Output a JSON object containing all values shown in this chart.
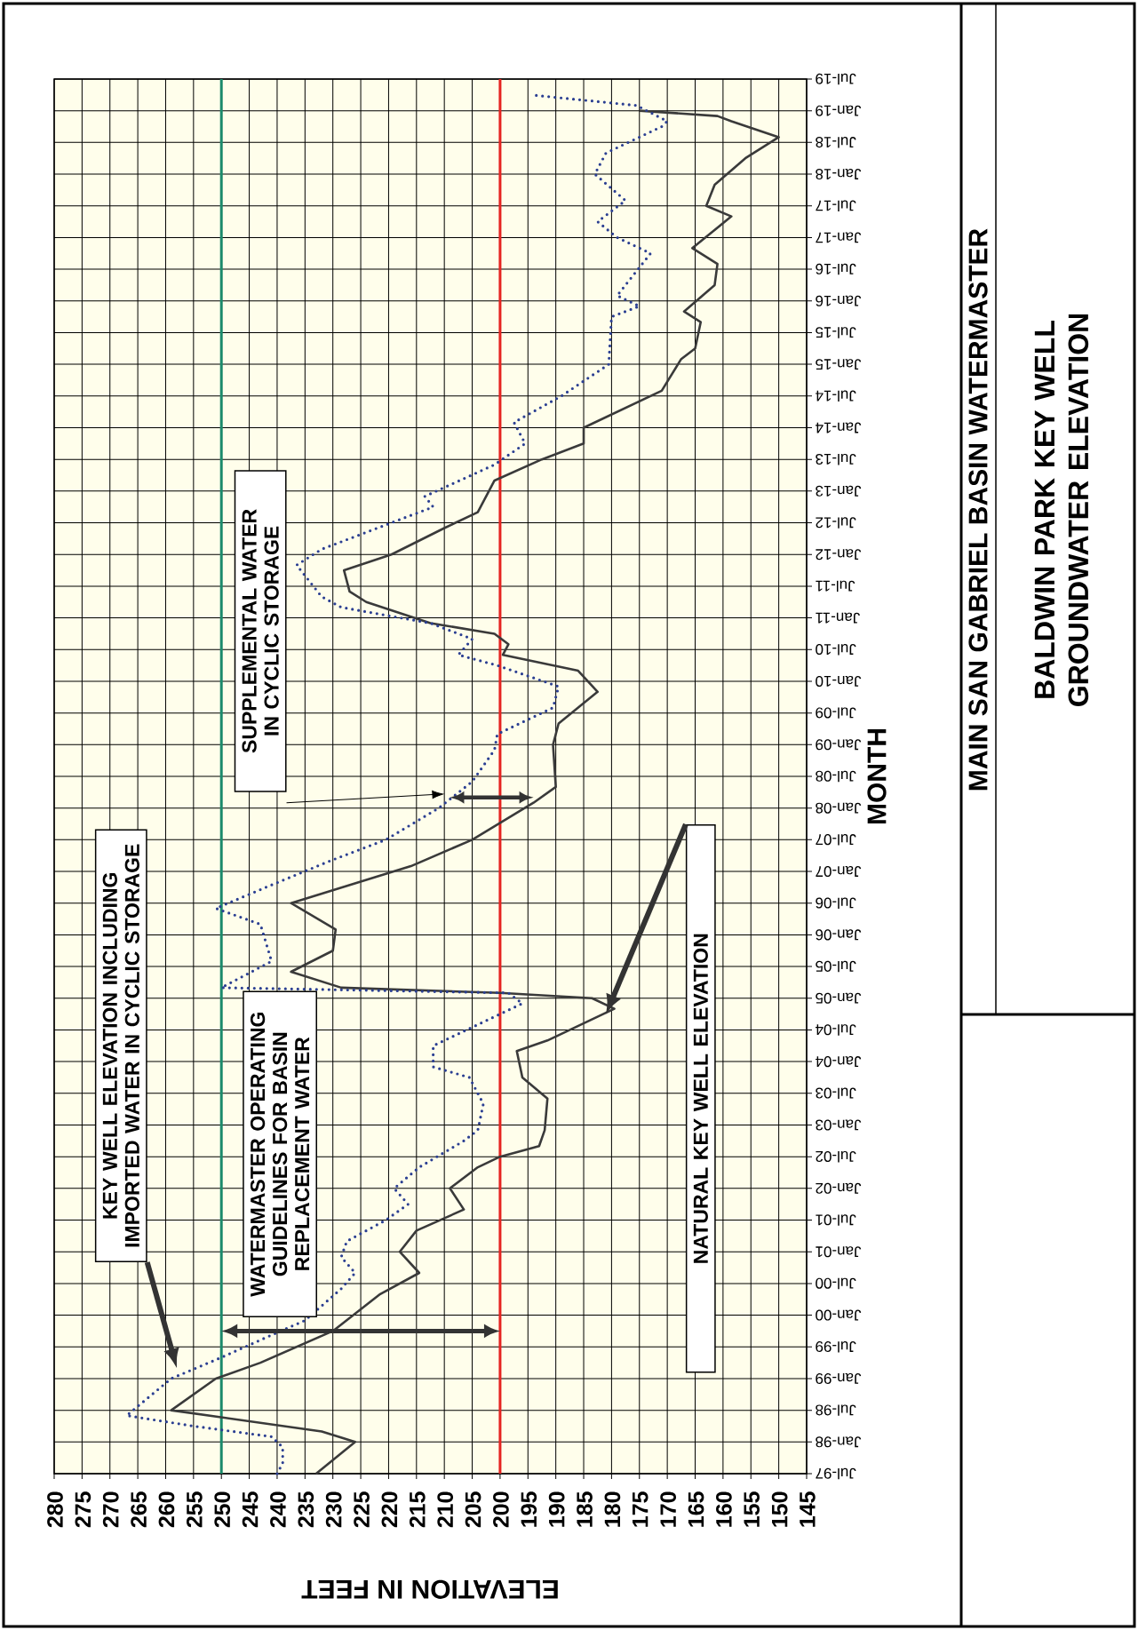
{
  "chart_data": {
    "type": "line",
    "title": "MAIN SAN GABRIEL BASIN WATERMASTER",
    "subtitle": "BALDWIN PARK KEY WELL GROUNDWATER ELEVATION",
    "xlabel": "ELEVATION IN FEET",
    "ylabel": "MONTH",
    "series": [
      {
        "color": "#3a3a3a",
        "line_style": "solid",
        "x": [
          "1997-07",
          "1998-01",
          "1998-03",
          "1998-07",
          "1999-01",
          "1999-04",
          "1999-10",
          "2000-05",
          "2000-09",
          "2001-01",
          "2001-05",
          "2001-09",
          "2002-01",
          "2002-05",
          "2002-07",
          "2002-09",
          "2002-12",
          "2003-06",
          "2003-10",
          "2004-03",
          "2004-05",
          "2004-11",
          "2005-01",
          "2005-02",
          "2005-03",
          "2005-06",
          "2005-10",
          "2006-02",
          "2006-07",
          "2007-02",
          "2007-07",
          "2008-02",
          "2008-05",
          "2009-01",
          "2009-05",
          "2009-11",
          "2010-03",
          "2010-06",
          "2010-08",
          "2010-10",
          "2010-12",
          "2011-04",
          "2011-06",
          "2011-10",
          "2012-01",
          "2012-06",
          "2012-09",
          "2013-03",
          "2013-07",
          "2013-10",
          "2014-01",
          "2014-08",
          "2015-02",
          "2015-04",
          "2015-09",
          "2015-11",
          "2016-04",
          "2016-08",
          "2016-11",
          "2017-05",
          "2017-07",
          "2017-11",
          "2018-04",
          "2018-08",
          "2018-11",
          "2018-12",
          "2019-01"
        ],
        "values": [
          233,
          226,
          232,
          259,
          251,
          243,
          230,
          221.5,
          214.5,
          218,
          215,
          206.5,
          209,
          204,
          200,
          193,
          192,
          191.5,
          196,
          197,
          191.5,
          179.5,
          183.5,
          200,
          228.5,
          237.5,
          230,
          229.5,
          237.5,
          216,
          205,
          194,
          190,
          190.5,
          189.5,
          182.5,
          186,
          199.5,
          198.5,
          201,
          212.5,
          224,
          227,
          228,
          219.5,
          210,
          204,
          201,
          192.5,
          185,
          185,
          171,
          167.5,
          165,
          164,
          167,
          161.5,
          161,
          165.5,
          158.5,
          163,
          161.5,
          156,
          150,
          158.5,
          161,
          175
        ]
      },
      {
        "color": "#2b3f92",
        "line_style": "dotted",
        "x": [
          "1997-07",
          "1997-09",
          "1997-12",
          "1998-02",
          "1998-04",
          "1998-06",
          "1999-01",
          "1999-05",
          "1999-09",
          "1999-12",
          "2000-06",
          "2000-09",
          "2000-12",
          "2001-03",
          "2001-07",
          "2001-10",
          "2002-01",
          "2002-05",
          "2002-10",
          "2002-12",
          "2003-05",
          "2003-10",
          "2003-12",
          "2004-04",
          "2004-08",
          "2004-12",
          "2005-02",
          "2005-03",
          "2005-08",
          "2006-03",
          "2006-06",
          "2006-10",
          "2007-03",
          "2007-07",
          "2008-01",
          "2008-06",
          "2008-12",
          "2009-03",
          "2009-08",
          "2009-12",
          "2010-04",
          "2010-06",
          "2010-09",
          "2010-12",
          "2011-03",
          "2011-05",
          "2011-11",
          "2012-02",
          "2012-07",
          "2012-10",
          "2012-12",
          "2013-06",
          "2013-10",
          "2014-02",
          "2014-07",
          "2015-01",
          "2015-10",
          "2015-12",
          "2016-02",
          "2016-10",
          "2017-01",
          "2017-04",
          "2017-08",
          "2018-01",
          "2018-05",
          "2018-10",
          "2018-11",
          "2019-02",
          "2019-04"
        ],
        "values": [
          240,
          239,
          239,
          241,
          255,
          267,
          259,
          250,
          241.5,
          235,
          228.5,
          226,
          228.5,
          227.5,
          220.5,
          216.5,
          219,
          214.5,
          206.5,
          204,
          203,
          205.5,
          212,
          212,
          204,
          196,
          198.5,
          250,
          241,
          243,
          251,
          242,
          230.5,
          220.5,
          211,
          205,
          201,
          200.5,
          190.5,
          189.5,
          200.5,
          207.5,
          205,
          212.5,
          228.5,
          232,
          236.5,
          232,
          219.5,
          212,
          213.5,
          201,
          195.5,
          197.5,
          189,
          180.5,
          180,
          175,
          179,
          173,
          179,
          182.5,
          177.5,
          183,
          181,
          171,
          170,
          175.5,
          194.5
        ]
      }
    ],
    "orientation": "horizontal",
    "ylim": [
      "1997-07",
      "2019-07"
    ],
    "yticks": [
      {
        "value": "1997-07",
        "label": "Jul-97"
      },
      {
        "value": "1998-01",
        "label": "Jan-98"
      },
      {
        "value": "1998-07",
        "label": "Jul-98"
      },
      {
        "value": "1999-01",
        "label": "Jan-99"
      },
      {
        "value": "1999-07",
        "label": "Jul-99"
      },
      {
        "value": "2000-01",
        "label": "Jan-00"
      },
      {
        "value": "2000-07",
        "label": "Jul-00"
      },
      {
        "value": "2001-01",
        "label": "Jan-01"
      },
      {
        "value": "2001-07",
        "label": "Jul-01"
      },
      {
        "value": "2002-01",
        "label": "Jan-02"
      },
      {
        "value": "2002-07",
        "label": "Jul-02"
      },
      {
        "value": "2003-01",
        "label": "Jan-03"
      },
      {
        "value": "2003-07",
        "label": "Jul-03"
      },
      {
        "value": "2004-01",
        "label": "Jan-04"
      },
      {
        "value": "2004-07",
        "label": "Jul-04"
      },
      {
        "value": "2005-01",
        "label": "Jan-05"
      },
      {
        "value": "2005-07",
        "label": "Jul-05"
      },
      {
        "value": "2006-01",
        "label": "Jan-06"
      },
      {
        "value": "2006-07",
        "label": "Jul-06"
      },
      {
        "value": "2007-01",
        "label": "Jan-07"
      },
      {
        "value": "2007-07",
        "label": "Jul-07"
      },
      {
        "value": "2008-01",
        "label": "Jan-08"
      },
      {
        "value": "2008-07",
        "label": "Jul-08"
      },
      {
        "value": "2009-01",
        "label": "Jan-09"
      },
      {
        "value": "2009-07",
        "label": "Jul-09"
      },
      {
        "value": "2010-01",
        "label": "Jan-10"
      },
      {
        "value": "2010-07",
        "label": "Jul-10"
      },
      {
        "value": "2011-01",
        "label": "Jan-11"
      },
      {
        "value": "2011-07",
        "label": "Jul-11"
      },
      {
        "value": "2012-01",
        "label": "Jan-12"
      },
      {
        "value": "2012-07",
        "label": "Jul-12"
      },
      {
        "value": "2013-01",
        "label": "Jan-13"
      },
      {
        "value": "2013-07",
        "label": "Jul-13"
      },
      {
        "value": "2014-01",
        "label": "Jan-14"
      },
      {
        "value": "2014-07",
        "label": "Jul-14"
      },
      {
        "value": "2015-01",
        "label": "Jan-15"
      },
      {
        "value": "2015-07",
        "label": "Jul-15"
      },
      {
        "value": "2016-01",
        "label": "Jan-16"
      },
      {
        "value": "2016-07",
        "label": "Jul-16"
      },
      {
        "value": "2017-01",
        "label": "Jan-17"
      },
      {
        "value": "2017-07",
        "label": "Jul-17"
      },
      {
        "value": "2018-01",
        "label": "Jan-18"
      },
      {
        "value": "2018-07",
        "label": "Jul-18"
      },
      {
        "value": "2019-01",
        "label": "Jan-19"
      },
      {
        "value": "2019-07",
        "label": "Jul-19"
      }
    ],
    "xlim": [
      280,
      145
    ],
    "xticks": [
      145,
      150,
      155,
      160,
      165,
      170,
      175,
      180,
      185,
      190,
      195,
      200,
      205,
      210,
      215,
      220,
      225,
      230,
      235,
      240,
      245,
      250,
      255,
      260,
      265,
      270,
      275,
      280
    ],
    "grid": true,
    "ref_lines": [
      {
        "axis": "x",
        "value": 250,
        "color": "#1b8a6b"
      },
      {
        "axis": "x",
        "value": 200,
        "color": "#e52421"
      }
    ],
    "annotations": [
      "KEY WELL ELEVATION INCLUDING IMPORTED WATER IN CYCLIC STORAGE",
      "WATERMASTER OPERATING GUIDELINES FOR BASIN REPLACEMENT WATER",
      "SUPPLEMENTAL WATER IN CYCLIC STORAGE",
      "NATURAL KEY WELL ELEVATION"
    ]
  }
}
